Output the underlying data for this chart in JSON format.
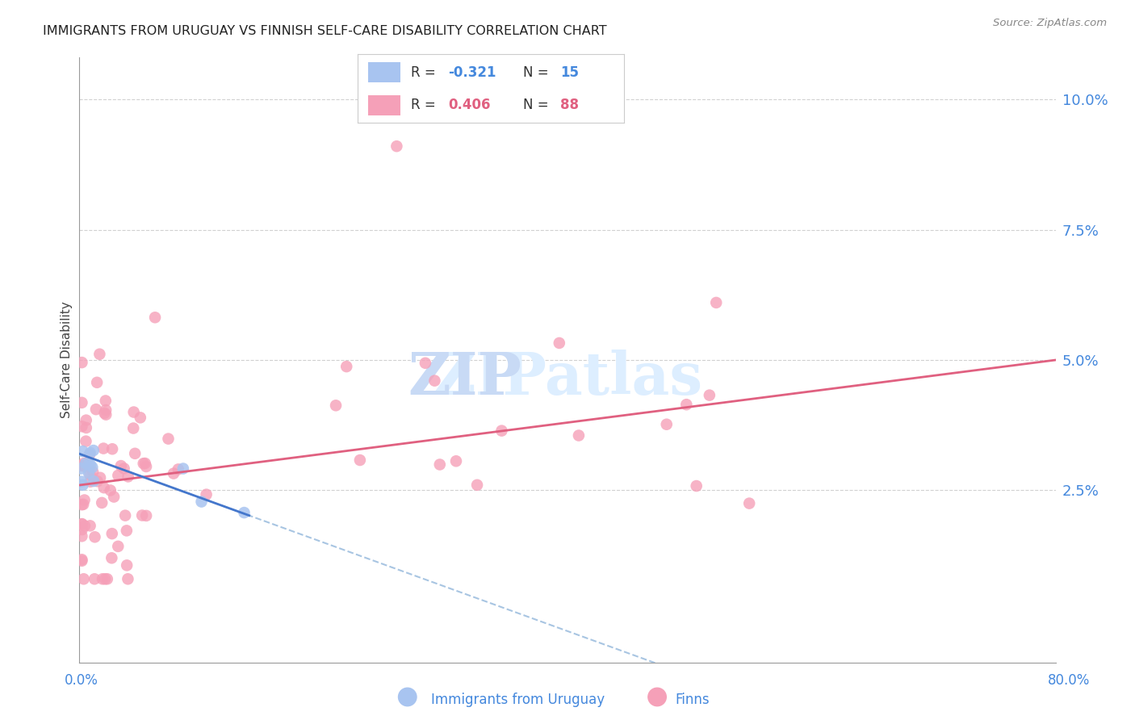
{
  "title": "IMMIGRANTS FROM URUGUAY VS FINNISH SELF-CARE DISABILITY CORRELATION CHART",
  "source": "Source: ZipAtlas.com",
  "ylabel": "Self-Care Disability",
  "yticks": [
    0.0,
    0.025,
    0.05,
    0.075,
    0.1
  ],
  "ytick_labels": [
    "",
    "2.5%",
    "5.0%",
    "7.5%",
    "10.0%"
  ],
  "xmin": 0.0,
  "xmax": 0.8,
  "ymin": -0.008,
  "ymax": 0.108,
  "color_uruguay": "#a8c4f0",
  "color_finns": "#f5a0b8",
  "color_line_uruguay": "#4477cc",
  "color_line_finns": "#e06080",
  "color_line_uruguay_dashed": "#99bbdd",
  "background_color": "#ffffff",
  "grid_color": "#cccccc",
  "title_color": "#222222",
  "axis_label_color": "#4488dd",
  "watermark_color": "#ddeeff",
  "finn_intercept": 0.026,
  "finn_slope": 0.03,
  "uru_intercept": 0.032,
  "uru_slope": -0.085
}
